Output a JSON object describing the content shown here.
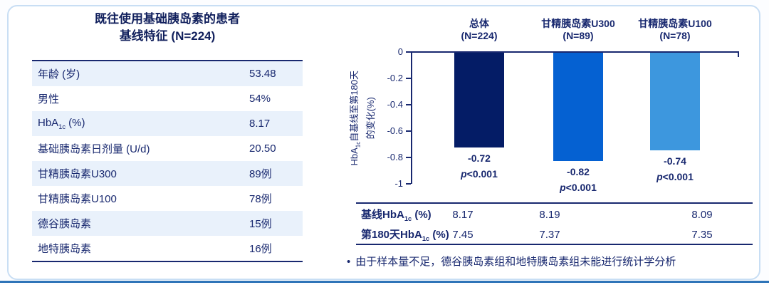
{
  "colors": {
    "navy": "#18286f",
    "title_navy": "#101f5c",
    "row_alt_bg": "#e9f1fb",
    "card_border": "#c8def4",
    "bottom_accent_line": "#2e74b8",
    "bar_total": "#041c66",
    "bar_u300": "#0561d2",
    "bar_u100": "#3d97de"
  },
  "left_panel": {
    "title_line1": "既往使用基础胰岛素的患者",
    "title_line2": "基线特征 (N=224)",
    "rows": [
      {
        "label": "年龄 (岁)",
        "value": "53.48"
      },
      {
        "label": "男性",
        "value": "54%"
      },
      {
        "label_parts": [
          {
            "t": "HbA"
          },
          {
            "t": "1c",
            "sub": true
          },
          {
            "t": " (%)"
          }
        ],
        "value": "8.17"
      },
      {
        "label": "基础胰岛素日剂量 (U/d)",
        "value": "20.50"
      },
      {
        "label": "甘精胰岛素U300",
        "value": "89例"
      },
      {
        "label": "甘精胰岛素U100",
        "value": "78例"
      },
      {
        "label": "德谷胰岛素",
        "value": "15例"
      },
      {
        "label": "地特胰岛素",
        "value": "16例"
      }
    ]
  },
  "chart_data": {
    "type": "bar",
    "ylabel_text": "HbA1c自基线至第180天的变化(%)",
    "ylabel_line1_parts": [
      {
        "t": "HbA"
      },
      {
        "t": "1c",
        "sub": true
      },
      {
        "t": "自基线至第180天"
      }
    ],
    "ylabel_line2": "的变化(%)",
    "ylim": [
      -1,
      0
    ],
    "grid": false,
    "yticks": [
      {
        "v": 0,
        "label": "0"
      },
      {
        "v": -0.2,
        "label": "-0.2"
      },
      {
        "v": -0.4,
        "label": "-0.4"
      },
      {
        "v": -0.6,
        "label": "-0.6"
      },
      {
        "v": -0.8,
        "label": "-0.8"
      },
      {
        "v": -1,
        "label": "-1"
      }
    ],
    "groups": [
      {
        "name": "总体",
        "n_label": "(N=224)",
        "value": -0.72,
        "value_label": "-0.72",
        "p_italic": "p",
        "p_rest": "<0.001",
        "color": "#041c66"
      },
      {
        "name": "甘精胰岛素U300",
        "n_label": "(N=89)",
        "value": -0.82,
        "value_label": "-0.82",
        "p_italic": "p",
        "p_rest": "<0.001",
        "color": "#0561d2"
      },
      {
        "name": "甘精胰岛素U100",
        "n_label": "(N=78)",
        "value": -0.74,
        "value_label": "-0.74",
        "p_italic": "p",
        "p_rest": "<0.001",
        "color": "#3d97de"
      }
    ],
    "summary_table": {
      "rows": [
        {
          "label_parts": [
            {
              "t": "基线HbA"
            },
            {
              "t": "1c",
              "sub": true
            },
            {
              "t": " (%)"
            }
          ],
          "values": [
            "8.17",
            "8.19",
            "8.09"
          ]
        },
        {
          "label_parts": [
            {
              "t": "第180天HbA"
            },
            {
              "t": "1c",
              "sub": true
            },
            {
              "t": " (%)"
            }
          ],
          "values": [
            "7.45",
            "7.37",
            "7.35"
          ]
        }
      ]
    }
  },
  "footnote": {
    "bullet": "•",
    "text": "由于样本量不足，德谷胰岛素组和地特胰岛素组未能进行统计学分析"
  }
}
